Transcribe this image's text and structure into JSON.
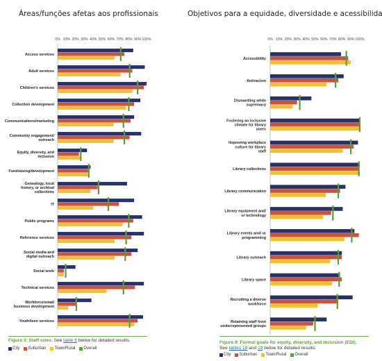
{
  "colors": {
    "city": "#27306b",
    "suburban": "#c8553a",
    "town": "#f0c030",
    "overall": "#5a9e3c"
  },
  "titles": {
    "left": "Áreas/funções afetas aos profissionais",
    "right": "Objetivos para a equidade, diversidade e acessibilidade"
  },
  "captions": {
    "left": {
      "title": "Figure 3: Staff roles.",
      "pre": " See ",
      "link1": "table 6",
      "post": " below for detailed results."
    },
    "right": {
      "title": "Figure 9: Formal goals for equity, diversity, and inclusion (EDI).",
      "pre": "See ",
      "link1": "tables 18",
      "mid": " and ",
      "link2": "19",
      "post": " below for detailed results."
    }
  },
  "legend": {
    "city": "City",
    "suburban": "Suburban",
    "town": "Town/Rural",
    "overall": "Overall"
  },
  "chart_data": [
    {
      "type": "bar",
      "orientation": "horizontal",
      "title": "Áreas/funções afetas aos profissionais",
      "xlim": [
        0,
        100
      ],
      "ticks": [
        "0%",
        "10%",
        "20%",
        "30%",
        "40%",
        "50%",
        "60%",
        "70%",
        "80%",
        "90%",
        "100%"
      ],
      "categories": [
        "Access services",
        "Adult services",
        "Children’s services",
        "Collection development",
        "Communications/marketing",
        "Community engagement/ outreach",
        "Equity, diversity, and inclusion",
        "Fundraising/development",
        "Genealogy, local history, or archival collections",
        "IT",
        "Public programs",
        "Reference services",
        "Social media and digital outreach",
        "Social work",
        "Technical services",
        "Workforce/small business development",
        "Youth/teen services"
      ],
      "series": [
        {
          "name": "City",
          "values": [
            85,
            98,
            100,
            93,
            86,
            94,
            33,
            37,
            78,
            86,
            95,
            97,
            90,
            20,
            97,
            38,
            96
          ]
        },
        {
          "name": "Suburban",
          "values": [
            75,
            84,
            97,
            86,
            82,
            81,
            24,
            34,
            45,
            69,
            85,
            83,
            83,
            7,
            87,
            21,
            90
          ]
        },
        {
          "name": "Town/Rural",
          "values": [
            64,
            71,
            84,
            77,
            63,
            63,
            26,
            34,
            37,
            40,
            73,
            64,
            64,
            7,
            55,
            12,
            86
          ]
        },
        {
          "name": "Overall",
          "values": [
            71,
            81,
            90,
            80,
            74,
            75,
            26,
            35,
            46,
            57,
            80,
            77,
            76,
            9,
            74,
            21,
            81
          ]
        }
      ]
    },
    {
      "type": "bar",
      "orientation": "horizontal",
      "title": "Objetivos para a equidade, diversidade e acessibilidade",
      "xlim": [
        0,
        100
      ],
      "ticks": [
        "0%",
        "10%",
        "20%",
        "30%",
        "40%",
        "50%",
        "60%",
        "70%",
        "80%",
        "90%",
        "100%"
      ],
      "categories": [
        "Accessibility",
        "Antiracism",
        "Dismantling white supremacy",
        "Fostering an inclusive climate for library users",
        "Improving workplace culture for library staff",
        "Library collections",
        "Library communication",
        "Library equipment and/ or technology",
        "Library events and/ or programming",
        "Library outreach",
        "Library space",
        "Recruiting a diverse workforce",
        "Retaining staff from underrepresented groups"
      ],
      "series": [
        {
          "name": "City",
          "values": [
            79,
            82,
            46,
            100,
            98,
            100,
            84,
            81,
            94,
            80,
            78,
            92,
            63
          ]
        },
        {
          "name": "Suburban",
          "values": [
            87,
            76,
            30,
            100,
            93,
            99,
            78,
            68,
            99,
            80,
            80,
            76,
            48
          ]
        },
        {
          "name": "Town/Rural",
          "values": [
            90,
            63,
            25,
            100,
            81,
            100,
            62,
            59,
            83,
            67,
            69,
            53,
            40
          ]
        },
        {
          "name": "Overall",
          "values": [
            85,
            73,
            33,
            100,
            90,
            99,
            76,
            70,
            91,
            76,
            77,
            75,
            50
          ]
        }
      ]
    }
  ]
}
